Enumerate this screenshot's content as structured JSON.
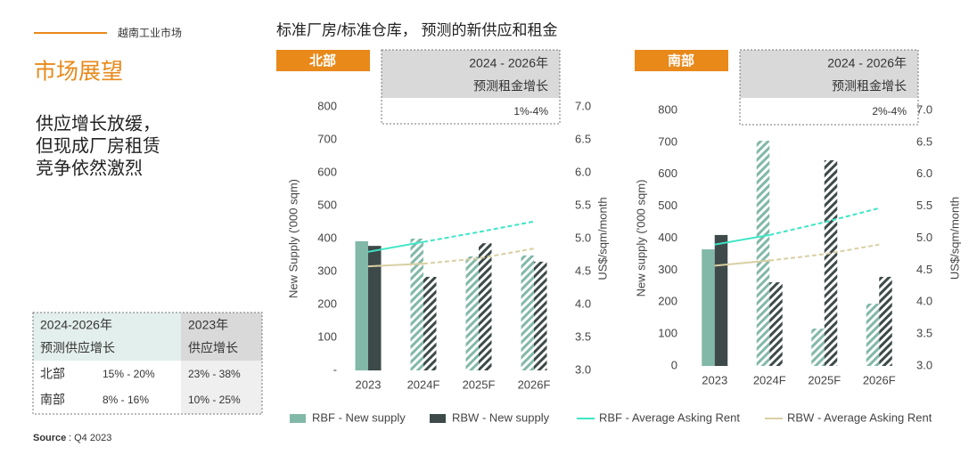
{
  "header": {
    "section": "越南工业市场",
    "title": "市场展望",
    "subtitle": [
      "供应增长放缓，",
      "但现成厂房租赁",
      "竞争依然激烈"
    ]
  },
  "table": {
    "header": [
      [
        "2024-2026年",
        "预测供应增长"
      ],
      [
        "2023年",
        "供应增长"
      ]
    ],
    "rows": [
      [
        "北部",
        "15% - 20%",
        "23% - 38%"
      ],
      [
        "南部",
        "8% - 16%",
        "10% - 25%"
      ]
    ]
  },
  "source": {
    "label": "Source",
    "text": ": Q4 2023"
  },
  "chart_title": "标准厂房/标准仓库， 预测的新供应和租金",
  "chart_data": [
    {
      "type": "bar",
      "region": "北部",
      "note": {
        "title": [
          "2024 - 2026年",
          "预测租金增长"
        ],
        "value": "1%-4%"
      },
      "categories": [
        "2023",
        "2024F",
        "2025F",
        "2026F"
      ],
      "forecast_from": 1,
      "ylabel": "New Supply ('000 sqm)",
      "y2label": "US$/sqm/month",
      "ylim": [
        0,
        800
      ],
      "yticks": [
        {
          "value": 0,
          "label": "-"
        },
        100,
        200,
        300,
        400,
        500,
        600,
        700,
        800
      ],
      "y2lim": [
        3,
        7
      ],
      "y2ticks": [
        {
          "value": 3,
          "label": "3.0"
        },
        3.5,
        {
          "value": 4,
          "label": "4.0"
        },
        4.5,
        {
          "value": 5,
          "label": "5.0"
        },
        5.5,
        {
          "value": 6,
          "label": "6.0"
        },
        6.5,
        {
          "value": 7,
          "label": "7.0"
        }
      ],
      "series": [
        {
          "name": "RBF - New supply",
          "type": "bar",
          "color": "#82b8a8",
          "values": [
            392,
            400,
            346,
            349
          ]
        },
        {
          "name": "RBW - New supply",
          "type": "bar",
          "color": "#3e4a4a",
          "values": [
            378,
            284,
            386,
            330
          ]
        },
        {
          "name": "RBF - Average Asking Rent",
          "type": "line",
          "axis": "y2",
          "color": "#3ee6c6",
          "values": [
            4.8,
            4.95,
            5.1,
            5.26
          ]
        },
        {
          "name": "RBW - Average Asking Rent",
          "type": "line",
          "axis": "y2",
          "color": "#d9cfa2",
          "values": [
            4.58,
            4.62,
            4.7,
            4.85
          ]
        }
      ]
    },
    {
      "type": "bar",
      "region": "南部",
      "note": {
        "title": [
          "2024 - 2026年",
          "预测租金增长"
        ],
        "value": "2%-4%"
      },
      "categories": [
        "2023",
        "2024F",
        "2025F",
        "2026F"
      ],
      "forecast_from": 1,
      "ylabel": "New supply ('000 sqm)",
      "y2label": "US$/sqm/month",
      "ylim": [
        0,
        800
      ],
      "yticks": [
        0,
        100,
        200,
        300,
        400,
        500,
        600,
        700,
        800
      ],
      "y2lim": [
        3,
        7
      ],
      "y2ticks": [
        {
          "value": 3,
          "label": "3.0"
        },
        3.5,
        {
          "value": 4,
          "label": "4.0"
        },
        4.5,
        {
          "value": 5,
          "label": "5.0"
        },
        5.5,
        {
          "value": 6,
          "label": "6.0"
        },
        6.5,
        {
          "value": 7,
          "label": "7.0"
        }
      ],
      "series": [
        {
          "type": "bar",
          "color": "#82b8a8",
          "values": [
            365,
            705,
            117,
            195
          ]
        },
        {
          "type": "bar",
          "color": "#3e4a4a",
          "values": [
            410,
            262,
            644,
            279
          ]
        },
        {
          "type": "line",
          "axis": "y2",
          "color": "#3ee6c6",
          "values": [
            4.9,
            5.05,
            5.25,
            5.47
          ]
        },
        {
          "type": "line",
          "axis": "y2",
          "color": "#d9cfa2",
          "values": [
            4.57,
            4.65,
            4.75,
            4.9
          ]
        }
      ]
    }
  ]
}
